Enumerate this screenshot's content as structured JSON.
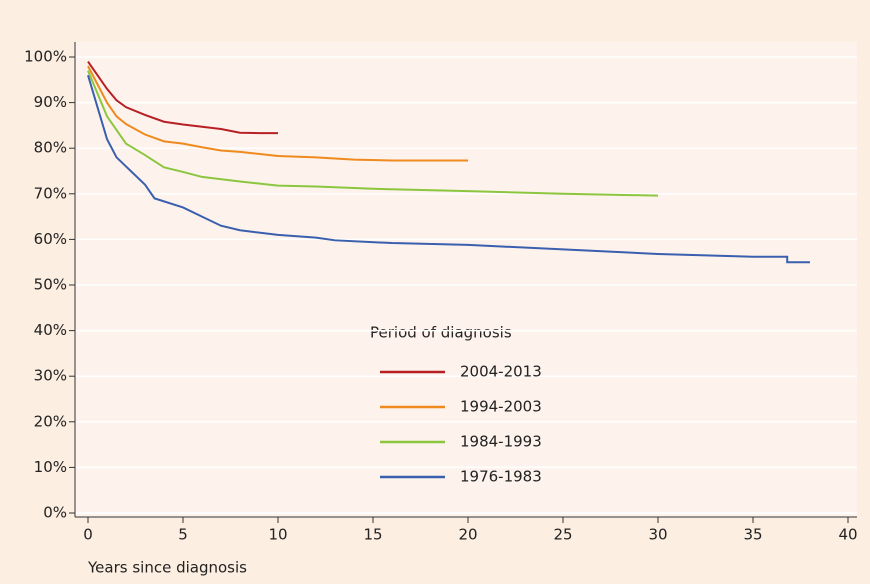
{
  "chart_data": {
    "type": "line",
    "x_label": "Years since diagnosis",
    "legend_title": "Period of diagnosis",
    "xlim": [
      0,
      40
    ],
    "xticks": [
      0,
      5,
      10,
      15,
      20,
      25,
      30,
      35,
      40
    ],
    "ylim": [
      0,
      100
    ],
    "yticks": [
      {
        "value": 0,
        "label": "0%"
      },
      {
        "value": 10,
        "label": "10%"
      },
      {
        "value": 20,
        "label": "20%"
      },
      {
        "value": 30,
        "label": "30%"
      },
      {
        "value": 40,
        "label": "40%"
      },
      {
        "value": 50,
        "label": "50%"
      },
      {
        "value": 60,
        "label": "60%"
      },
      {
        "value": 70,
        "label": "70%"
      },
      {
        "value": 80,
        "label": "80%"
      },
      {
        "value": 90,
        "label": "90%"
      },
      {
        "value": 100,
        "label": "100%"
      }
    ],
    "grid": true,
    "series": [
      {
        "name": "2004-2013",
        "color": "#b81f24",
        "x": [
          0,
          0.25,
          0.5,
          1,
          1.5,
          2,
          3,
          4,
          5,
          6,
          7,
          8,
          9,
          10
        ],
        "values": [
          99,
          97.5,
          96,
          93,
          90.5,
          89,
          87.3,
          85.8,
          85.2,
          84.7,
          84.2,
          83.4,
          83.3,
          83.3
        ]
      },
      {
        "name": "1994-2003",
        "color": "#ef8a1e",
        "x": [
          0,
          0.5,
          1,
          1.5,
          2,
          3,
          4,
          5,
          6,
          7,
          8,
          10,
          12,
          14,
          16,
          20
        ],
        "values": [
          98,
          94,
          90,
          87,
          85.3,
          83,
          81.5,
          81,
          80.2,
          79.5,
          79.2,
          78.3,
          78,
          77.5,
          77.3,
          77.3
        ]
      },
      {
        "name": "1984-1993",
        "color": "#8cc63f",
        "x": [
          0,
          0.5,
          1,
          1.5,
          2,
          3,
          4,
          5,
          6,
          8,
          10,
          12,
          15,
          20,
          25,
          30
        ],
        "values": [
          97,
          92,
          87,
          84,
          81,
          78.5,
          75.8,
          74.8,
          73.7,
          72.7,
          71.8,
          71.6,
          71.1,
          70.6,
          70,
          69.6
        ]
      },
      {
        "name": "1976-1983",
        "color": "#3a5fae",
        "x": [
          0,
          0.5,
          1,
          1.5,
          2,
          3,
          3.5,
          5,
          6,
          7,
          8,
          10,
          12,
          13,
          16,
          20,
          25,
          30,
          35,
          36.8,
          36.8,
          38
        ],
        "values": [
          96,
          89,
          82,
          78,
          76,
          72,
          69,
          67,
          65,
          63,
          62,
          61,
          60.4,
          59.8,
          59.2,
          58.8,
          57.8,
          56.8,
          56.2,
          56.2,
          55,
          55
        ]
      }
    ]
  }
}
